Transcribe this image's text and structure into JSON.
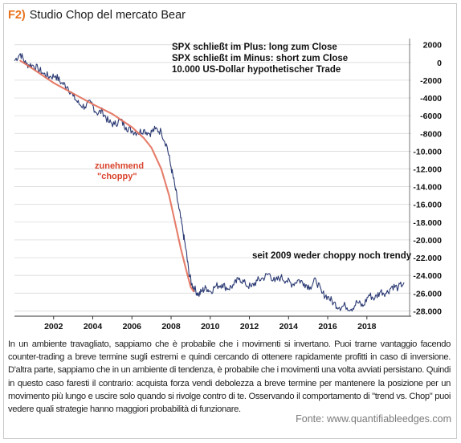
{
  "figure": {
    "fig_label": "F2)",
    "title": "Studio Chop del mercato Bear",
    "caption": "In un ambiente travagliato, sappiamo che è probabile che i movimenti si invertano. Puoi trarne vantaggio facendo counter-trading a breve termine sugli estremi e quindi cercando di ottenere rapidamente profitti in caso di inversione. D'altra parte, sappiamo che in un ambiente di tendenza, è probabile che i movimenti una volta avviati persistano. Quindi in questo caso faresti il contrario: acquista forza vendi debolezza a breve termine per mantenere la posizione per un movimento più lungo e uscire solo quando si rivolge contro di te. Osservando il comportamento di \"trend vs. Chop\" puoi vedere quali strategie hanno maggiori probabilità di funzionare.",
    "source": "Fonte: www.quantifiableedges.com"
  },
  "colors": {
    "fig_label": "#e8731c",
    "series_line": "#2b3a73",
    "trend_curve": "#e36f5a",
    "annotation_red": "#d9432b",
    "gridline": "#d3d3d3"
  },
  "chart_data": {
    "type": "line",
    "x_tick_labels": [
      "2002",
      "2004",
      "2006",
      "2008",
      "2010",
      "2012",
      "2014",
      "2016",
      "2018"
    ],
    "x_ticks": [
      2002,
      2004,
      2006,
      2008,
      2010,
      2012,
      2014,
      2016,
      2018
    ],
    "xlim": [
      2000.0,
      2020.1
    ],
    "y_tick_labels": [
      "2000",
      "0",
      "-2000",
      "-4000",
      "-6000",
      "-8000",
      "-10.000",
      "-12.000",
      "-14.000",
      "-16.000",
      "-18.000",
      "-20.000",
      "-22.000",
      "-24.000",
      "-26.000",
      "-28.000"
    ],
    "y_ticks": [
      2000,
      0,
      -2000,
      -4000,
      -6000,
      -8000,
      -10000,
      -12000,
      -14000,
      -16000,
      -18000,
      -20000,
      -22000,
      -24000,
      -26000,
      -28000
    ],
    "ylim": [
      -28600,
      2700
    ],
    "y_axis_side": "right",
    "grid": "horizontal",
    "legend_lines": [
      "SPX schließt im Plus: long zum Close",
      "SPX schließt im Minus: short zum Close",
      "10.000 US-Dollar hypothetischer Trade"
    ],
    "annotations": [
      {
        "text": "zunehmend",
        "color": "red"
      },
      {
        "text": "\"choppy\"",
        "color": "red"
      },
      {
        "text": "seit 2009 weder choppy noch trendy",
        "color": "black"
      }
    ],
    "series": [
      {
        "style": "noisy-line",
        "x": [
          2000.0,
          2000.3,
          2000.6,
          2000.9,
          2001.2,
          2001.5,
          2001.8,
          2002.1,
          2002.4,
          2002.7,
          2003.0,
          2003.3,
          2003.6,
          2003.9,
          2004.2,
          2004.5,
          2004.8,
          2005.1,
          2005.4,
          2005.7,
          2006.0,
          2006.3,
          2006.6,
          2006.9,
          2007.2,
          2007.5,
          2007.8,
          2008.0,
          2008.2,
          2008.4,
          2008.6,
          2008.75,
          2008.9,
          2009.05,
          2009.2,
          2009.4,
          2009.6,
          2009.8,
          2010.0,
          2010.3,
          2010.6,
          2010.9,
          2011.2,
          2011.5,
          2011.8,
          2012.1,
          2012.4,
          2012.7,
          2013.0,
          2013.3,
          2013.6,
          2013.9,
          2014.2,
          2014.5,
          2014.8,
          2015.1,
          2015.4,
          2015.7,
          2016.0,
          2016.3,
          2016.6,
          2016.9,
          2017.2,
          2017.5,
          2017.8,
          2018.1,
          2018.4,
          2018.7,
          2019.0,
          2019.3,
          2019.6,
          2019.9
        ],
        "y": [
          200,
          1000,
          -200,
          -300,
          -700,
          -1300,
          -1600,
          -1500,
          -2300,
          -2700,
          -3800,
          -4700,
          -5000,
          -4500,
          -5700,
          -5500,
          -6700,
          -7000,
          -6500,
          -7300,
          -7700,
          -7900,
          -7600,
          -8000,
          -7500,
          -7800,
          -9500,
          -11800,
          -14000,
          -16500,
          -19000,
          -21000,
          -23500,
          -25000,
          -25500,
          -26200,
          -25700,
          -25400,
          -25800,
          -25200,
          -25000,
          -25500,
          -25100,
          -24300,
          -25000,
          -25300,
          -24600,
          -24300,
          -23800,
          -24700,
          -24200,
          -24600,
          -25000,
          -24500,
          -24900,
          -25300,
          -24500,
          -26000,
          -26400,
          -27100,
          -27600,
          -27400,
          -27800,
          -27000,
          -27500,
          -26200,
          -26600,
          -25800,
          -26000,
          -25200,
          -25400,
          -24800
        ]
      },
      {
        "style": "trend-curve",
        "x": [
          2000.3,
          2001.0,
          2002.0,
          2003.0,
          2004.0,
          2005.0,
          2006.0,
          2006.6,
          2007.0,
          2007.5,
          2007.9,
          2008.2,
          2008.5,
          2008.75,
          2009.0,
          2009.15
        ],
        "y": [
          200,
          -800,
          -2300,
          -3500,
          -4700,
          -5800,
          -7300,
          -8500,
          -9600,
          -12000,
          -15000,
          -18000,
          -21000,
          -23200,
          -25300,
          -25800
        ]
      }
    ]
  }
}
